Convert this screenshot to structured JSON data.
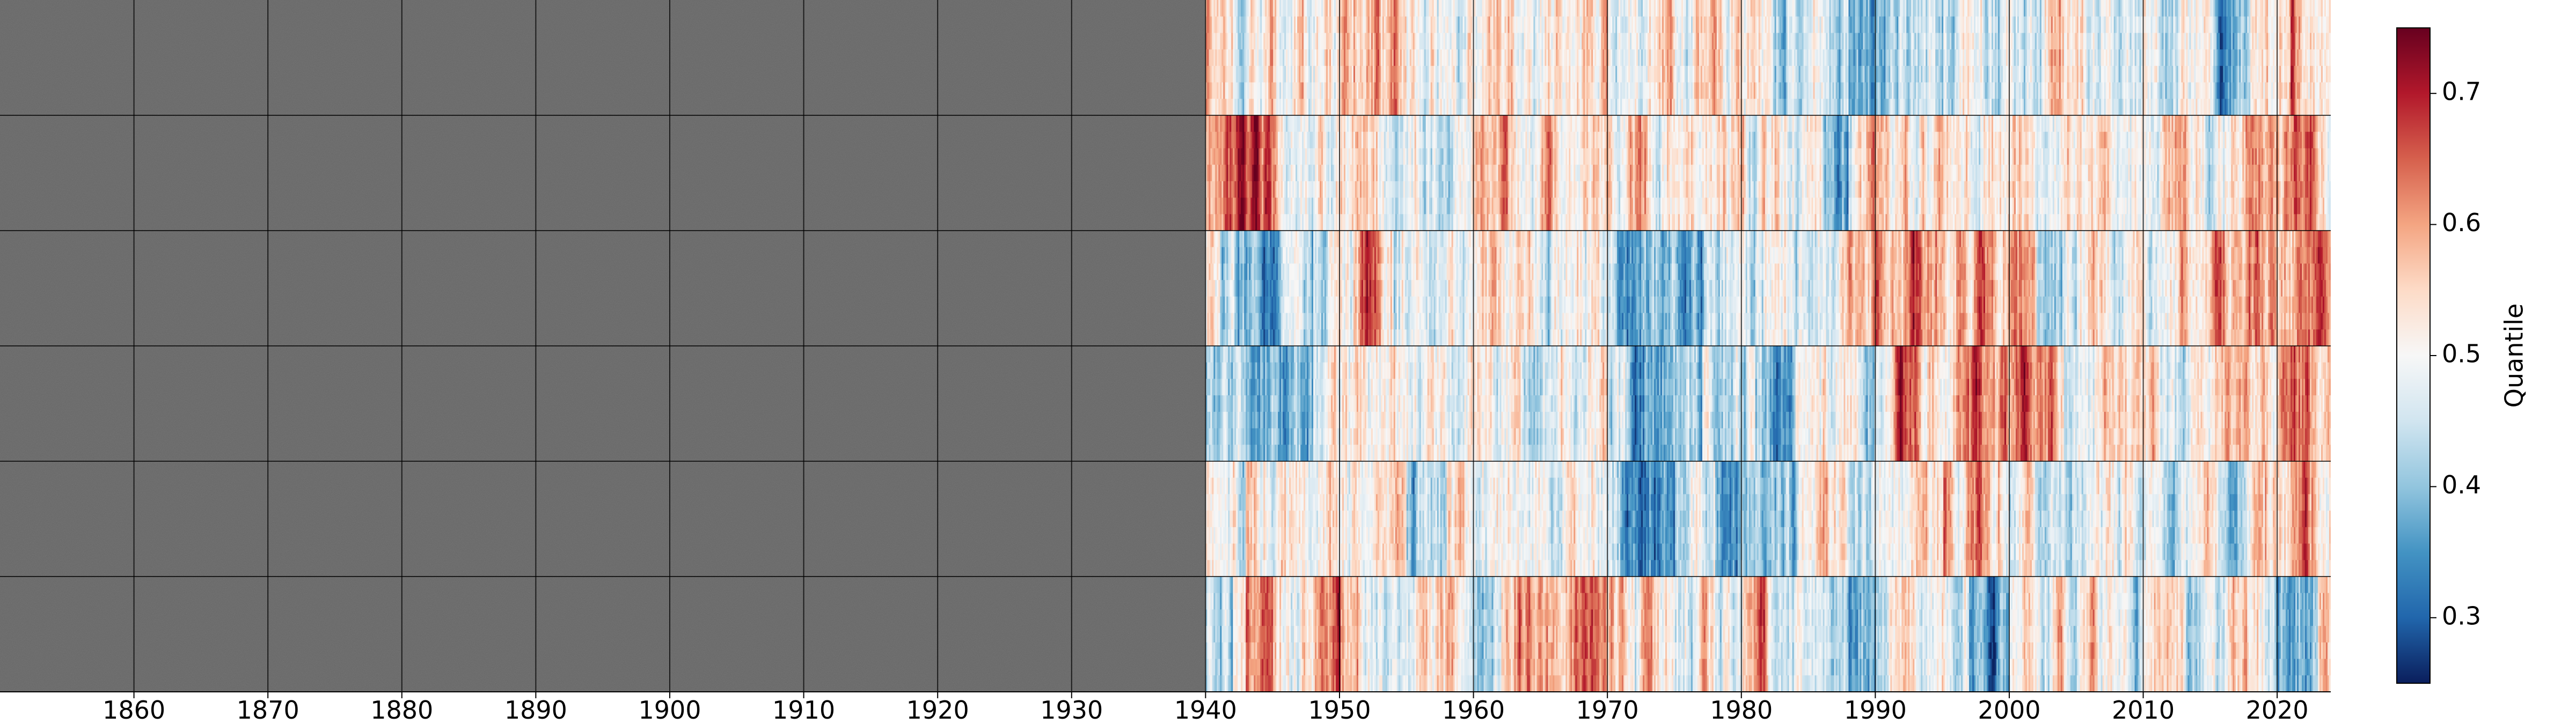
{
  "chart_data": {
    "type": "heatmap",
    "title": "",
    "xlabel": "",
    "ylabel": "",
    "xlim": [
      1850,
      2024
    ],
    "x_tick_labels": [
      "1860",
      "1870",
      "1880",
      "1890",
      "1900",
      "1910",
      "1920",
      "1930",
      "1940",
      "1950",
      "1960",
      "1970",
      "1980",
      "1990",
      "2000",
      "2010",
      "2020"
    ],
    "x_tick_values": [
      1860,
      1870,
      1880,
      1890,
      1900,
      1910,
      1920,
      1930,
      1940,
      1950,
      1960,
      1970,
      1980,
      1990,
      2000,
      2010,
      2020
    ],
    "row_count": 6,
    "grid": true,
    "missing_data": {
      "from": 1850,
      "to": 1940,
      "color": "#666666"
    },
    "data_start": 1940,
    "rows": [
      {
        "index": 1,
        "mean_quantile": 0.5,
        "warm_periods": [
          [
            1940,
            1942
          ],
          [
            1951,
            1955
          ],
          [
            1968,
            1970
          ],
          [
            2021,
            2024
          ]
        ],
        "cool_periods": [
          [
            1988,
            1995
          ],
          [
            2015,
            2018
          ]
        ]
      },
      {
        "index": 2,
        "mean_quantile": 0.52,
        "warm_periods": [
          [
            1941,
            1946
          ],
          [
            2016,
            2024
          ]
        ],
        "cool_periods": [
          [
            1986,
            1988
          ]
        ]
      },
      {
        "index": 3,
        "mean_quantile": 0.5,
        "warm_periods": [
          [
            1951,
            1954
          ],
          [
            1988,
            2002
          ],
          [
            2012,
            2024
          ]
        ],
        "cool_periods": [
          [
            1941,
            1948
          ],
          [
            1970,
            1977
          ]
        ]
      },
      {
        "index": 4,
        "mean_quantile": 0.5,
        "warm_periods": [
          [
            1990,
            2004
          ],
          [
            2014,
            2024
          ]
        ],
        "cool_periods": [
          [
            1940,
            1948
          ],
          [
            1970,
            1977
          ],
          [
            1981,
            1984
          ]
        ]
      },
      {
        "index": 5,
        "mean_quantile": 0.5,
        "warm_periods": [
          [
            1943,
            1946
          ],
          [
            1995,
            2000
          ],
          [
            2019,
            2024
          ]
        ],
        "cool_periods": [
          [
            1955,
            1958
          ],
          [
            1970,
            1975
          ],
          [
            1978,
            1984
          ]
        ]
      },
      {
        "index": 6,
        "mean_quantile": 0.52,
        "warm_periods": [
          [
            1943,
            1945
          ],
          [
            1948,
            1950
          ],
          [
            1962,
            1972
          ],
          [
            1980,
            1982
          ]
        ],
        "cool_periods": [
          [
            1940,
            1942
          ],
          [
            1988,
            1990
          ],
          [
            1997,
            2000
          ],
          [
            2013,
            2016
          ],
          [
            2019,
            2023
          ]
        ]
      }
    ],
    "colorbar": {
      "label": "Quantile",
      "range": [
        0.25,
        0.75
      ],
      "tick_values": [
        0.3,
        0.4,
        0.5,
        0.6,
        0.7
      ],
      "tick_labels": [
        "0.3",
        "0.4",
        "0.5",
        "0.6",
        "0.7"
      ],
      "colormap": "RdBu_r",
      "colors": [
        "#0a1e5c",
        "#2166ac",
        "#4393c3",
        "#92c5de",
        "#d1e5f0",
        "#f7f7f7",
        "#fddbc7",
        "#f4a582",
        "#d6604d",
        "#b2182b",
        "#67001f"
      ]
    }
  }
}
